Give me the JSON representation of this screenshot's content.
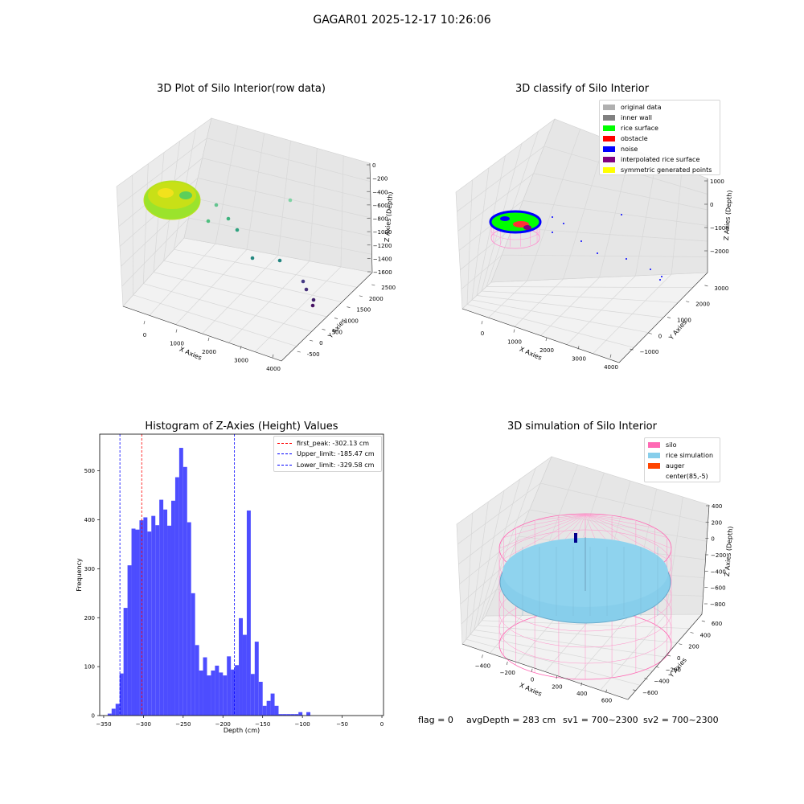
{
  "figure": {
    "suptitle": "GAGAR01 2025-12-17 10:26:06",
    "footer": {
      "flag": "flag = 0",
      "avg_depth": "avgDepth = 283 cm",
      "sv1": "sv1 = 700~2300",
      "sv2": "sv2 = 700~2300"
    }
  },
  "chart_data": [
    {
      "type": "scatter",
      "title": "3D Plot of Silo Interior(row data)",
      "xlabel": "X Axies",
      "ylabel": "Y Axies",
      "zlabel": "Z Axies (Depth)",
      "x_ticks": [
        "0",
        "1000",
        "2000",
        "3000",
        "4000"
      ],
      "y_ticks": [
        "-500",
        "0",
        "500",
        "1000",
        "1500",
        "2000",
        "2500"
      ],
      "z_ticks": [
        "0",
        "−200",
        "−400",
        "−600",
        "−800",
        "−1000",
        "−1200",
        "−1400",
        "−1600"
      ],
      "colormap": "viridis",
      "note": "Dense green/yellow point cloud of the silo near the origin with scattered outlier points"
    },
    {
      "type": "scatter",
      "title": "3D classify of Silo Interior",
      "xlabel": "X Axies",
      "ylabel": "Y Axies",
      "zlabel": "Z Axies (Depth)",
      "x_ticks": [
        "0",
        "1000",
        "2000",
        "3000",
        "4000"
      ],
      "y_ticks": [
        "−1000",
        "0",
        "1000",
        "2000",
        "3000"
      ],
      "z_ticks": [
        "1000",
        "0",
        "−1000",
        "−2000"
      ],
      "legend_position": "top-right",
      "legend": [
        {
          "label": "original data",
          "color": "#b0b0b0"
        },
        {
          "label": "inner wall",
          "color": "#808080"
        },
        {
          "label": "rice surface",
          "color": "#00ff00"
        },
        {
          "label": "obstacle",
          "color": "#ff0000"
        },
        {
          "label": "noise",
          "color": "#0000ff"
        },
        {
          "label": "interpolated rice surface",
          "color": "#800080"
        },
        {
          "label": "symmetric generated points",
          "color": "#ffff00"
        }
      ]
    },
    {
      "type": "bar",
      "title": "Histogram of Z-Axies (Height) Values",
      "xlabel": "Depth (cm)",
      "ylabel": "Frequency",
      "xlim": [
        -355,
        2
      ],
      "ylim": [
        0,
        575
      ],
      "x_ticks": [
        -350,
        -300,
        -250,
        -200,
        -150,
        -100,
        -50,
        0
      ],
      "y_ticks": [
        0,
        100,
        200,
        300,
        400,
        500
      ],
      "bar_color": "#4d4dff",
      "bin_width": 5,
      "bin_start": -345,
      "values": [
        4,
        14,
        24,
        86,
        220,
        307,
        382,
        380,
        399,
        405,
        376,
        408,
        389,
        441,
        421,
        388,
        439,
        487,
        547,
        508,
        395,
        250,
        144,
        92,
        119,
        82,
        92,
        102,
        88,
        82,
        121,
        94,
        103,
        199,
        165,
        419,
        85,
        151,
        69,
        20,
        30,
        45,
        20,
        3,
        3,
        3,
        3,
        3,
        7,
        0,
        7
      ],
      "lines": [
        {
          "label": "first_peak: -302.13 cm",
          "x": -302.13,
          "color": "#ff0000"
        },
        {
          "label": "Upper_limit: -185.47 cm",
          "x": -185.47,
          "color": "#0000ff"
        },
        {
          "label": "Lower_limit: -329.58 cm",
          "x": -329.58,
          "color": "#0000ff"
        }
      ],
      "legend_position": "top-right"
    },
    {
      "type": "scatter",
      "title": "3D simulation of Silo Interior",
      "xlabel": "X Axies",
      "ylabel": "Y Axies",
      "zlabel": "Z Axies (Depth)",
      "x_ticks": [
        "−400",
        "−200",
        "0",
        "200",
        "400",
        "600"
      ],
      "y_ticks": [
        "−600",
        "−400",
        "−200",
        "0",
        "200",
        "400",
        "600"
      ],
      "z_ticks": [
        "400",
        "200",
        "0",
        "−200",
        "−400",
        "−600",
        "−800"
      ],
      "legend_position": "top-right",
      "legend": [
        {
          "label": "silo",
          "color": "#ff69b4"
        },
        {
          "label": "rice simulation",
          "color": "#87ceeb"
        },
        {
          "label": "auger",
          "color": "#ff4500"
        },
        {
          "label": "center(85,-5)",
          "color": ""
        }
      ]
    }
  ]
}
